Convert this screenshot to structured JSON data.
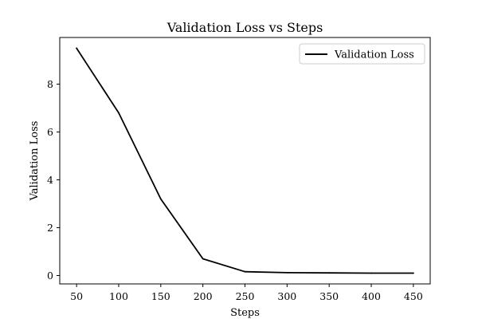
{
  "chart_data": {
    "type": "line",
    "title": "Validation Loss vs Steps",
    "xlabel": "Steps",
    "ylabel": "Validation Loss",
    "x": [
      50,
      100,
      150,
      200,
      250,
      300,
      350,
      400,
      450
    ],
    "series": [
      {
        "name": "Validation Loss",
        "color": "#000000",
        "values": [
          9.5,
          6.8,
          3.2,
          0.7,
          0.16,
          0.12,
          0.11,
          0.1,
          0.1
        ]
      }
    ],
    "xlim": [
      30,
      470
    ],
    "ylim": [
      -0.35,
      9.95
    ],
    "xticks": [
      50,
      100,
      150,
      200,
      250,
      300,
      350,
      400,
      450
    ],
    "yticks": [
      0,
      2,
      4,
      6,
      8
    ],
    "grid": false,
    "legend": "top-right"
  }
}
